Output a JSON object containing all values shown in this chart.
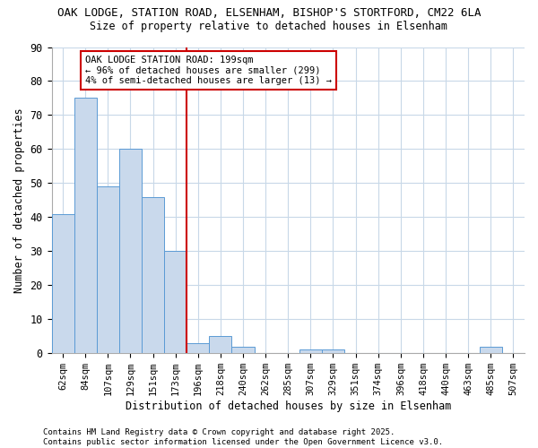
{
  "title_line1": "OAK LODGE, STATION ROAD, ELSENHAM, BISHOP'S STORTFORD, CM22 6LA",
  "title_line2": "Size of property relative to detached houses in Elsenham",
  "xlabel": "Distribution of detached houses by size in Elsenham",
  "ylabel": "Number of detached properties",
  "categories": [
    "62sqm",
    "84sqm",
    "107sqm",
    "129sqm",
    "151sqm",
    "173sqm",
    "196sqm",
    "218sqm",
    "240sqm",
    "262sqm",
    "285sqm",
    "307sqm",
    "329sqm",
    "351sqm",
    "374sqm",
    "396sqm",
    "418sqm",
    "440sqm",
    "463sqm",
    "485sqm",
    "507sqm"
  ],
  "values": [
    41,
    75,
    49,
    60,
    46,
    30,
    3,
    5,
    2,
    0,
    0,
    1,
    1,
    0,
    0,
    0,
    0,
    0,
    0,
    2,
    0
  ],
  "bar_color": "#c9d9ec",
  "bar_edge_color": "#5b9bd5",
  "vline_color": "#cc0000",
  "annotation_text": "OAK LODGE STATION ROAD: 199sqm\n← 96% of detached houses are smaller (299)\n4% of semi-detached houses are larger (13) →",
  "annotation_box_color": "#ffffff",
  "annotation_box_edge": "#cc0000",
  "ylim": [
    0,
    90
  ],
  "yticks": [
    0,
    10,
    20,
    30,
    40,
    50,
    60,
    70,
    80,
    90
  ],
  "background_color": "#ffffff",
  "plot_bg_color": "#ffffff",
  "grid_color": "#c8d8e8",
  "footnote": "Contains HM Land Registry data © Crown copyright and database right 2025.\nContains public sector information licensed under the Open Government Licence v3.0."
}
